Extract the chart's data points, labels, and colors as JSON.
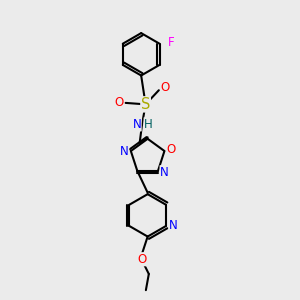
{
  "bg_color": "#ebebeb",
  "bond_color": "#000000",
  "bond_width": 1.5,
  "atom_colors": {
    "N": "#0000ff",
    "O": "#ff0000",
    "S": "#aaaa00",
    "F": "#ff00ff",
    "C": "#000000",
    "H": "#006060"
  },
  "font_size": 8.5,
  "figsize": [
    3.0,
    3.0
  ],
  "dpi": 100
}
